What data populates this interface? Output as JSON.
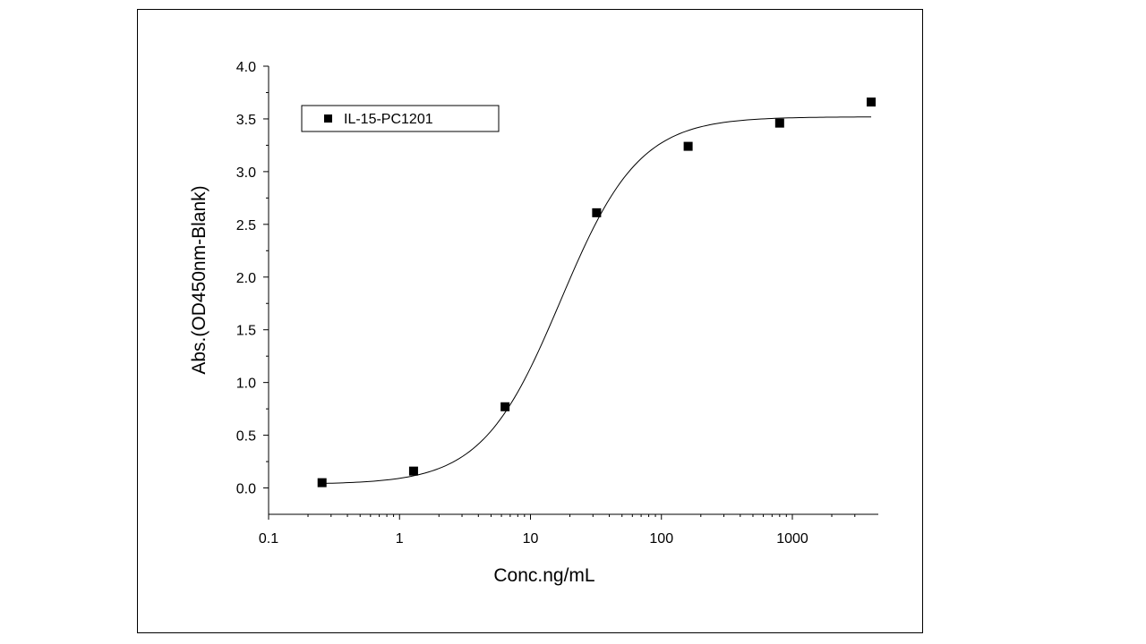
{
  "chart_data": {
    "type": "scatter",
    "x_scale": "log",
    "xlim": [
      0.1,
      4000
    ],
    "ylim": [
      -0.25,
      4.0
    ],
    "xticks": [
      0.1,
      1,
      10,
      100,
      1000
    ],
    "xtick_labels": [
      "0.1",
      "1",
      "10",
      "100",
      "1000"
    ],
    "yticks": [
      0.0,
      0.5,
      1.0,
      1.5,
      2.0,
      2.5,
      3.0,
      3.5,
      4.0
    ],
    "ytick_labels": [
      "0.0",
      "0.5",
      "1.0",
      "1.5",
      "2.0",
      "2.5",
      "3.0",
      "3.5",
      "4.0"
    ],
    "xlabel": "Conc.ng/mL",
    "ylabel": "Abs.(OD450nm-Blank)",
    "legend_placement": "top-left",
    "grid": false,
    "series": [
      {
        "name": "IL-15-PC1201",
        "marker": "square",
        "color": "#000000",
        "points": [
          {
            "x": 0.256,
            "y": 0.05
          },
          {
            "x": 1.28,
            "y": 0.16
          },
          {
            "x": 6.4,
            "y": 0.77
          },
          {
            "x": 32,
            "y": 2.61
          },
          {
            "x": 160,
            "y": 3.24
          },
          {
            "x": 800,
            "y": 3.46
          },
          {
            "x": 4000,
            "y": 3.66
          }
        ]
      }
    ],
    "fit_curve": {
      "type": "4PL",
      "bottom": 0.035,
      "top": 3.52,
      "ec50": 17,
      "hill": 1.45,
      "x_range": [
        0.256,
        4000
      ],
      "color": "#000000"
    }
  }
}
